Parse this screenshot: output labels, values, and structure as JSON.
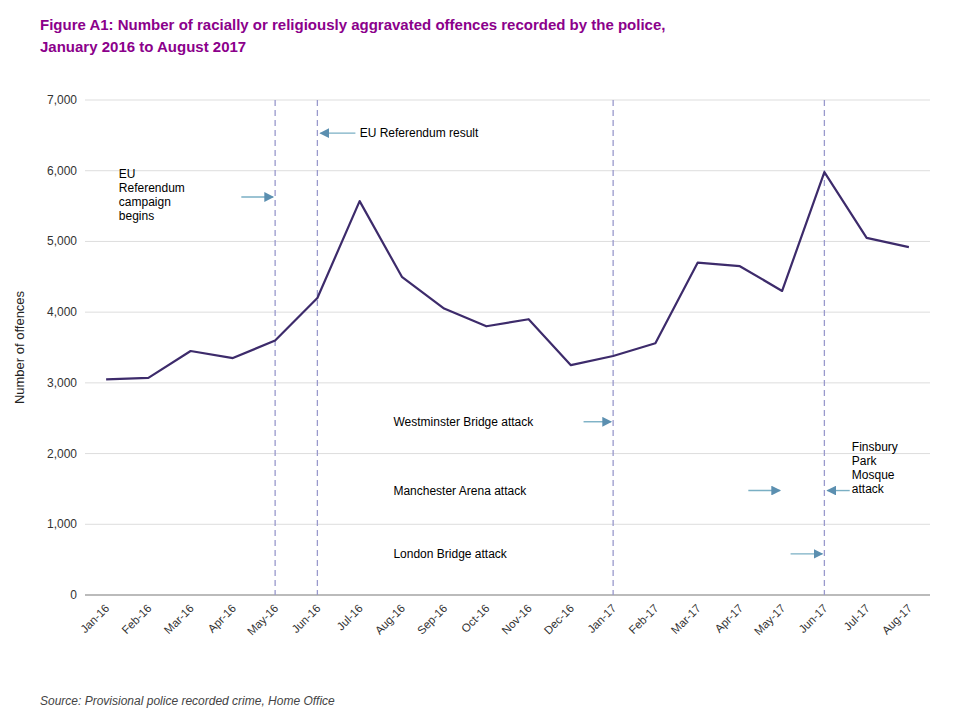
{
  "chart_data": {
    "type": "line",
    "title": "Figure A1: Number of racially or religiously aggravated offences recorded by the police,",
    "subtitle": "January 2016 to August 2017",
    "source": "Source: Provisional police recorded crime, Home Office",
    "y_label": "Number of offences",
    "categories": [
      "Jan-16",
      "Feb-16",
      "Mar-16",
      "Apr-16",
      "May-16",
      "Jun-16",
      "Jul-16",
      "Aug-16",
      "Sep-16",
      "Oct-16",
      "Nov-16",
      "Dec-16",
      "Jan-17",
      "Feb-17",
      "Mar-17",
      "Apr-17",
      "May-17",
      "Jun-17",
      "Jul-17",
      "Aug-17"
    ],
    "values": [
      3050,
      3070,
      3450,
      3350,
      3600,
      4200,
      5570,
      4500,
      4050,
      3800,
      3900,
      3250,
      3380,
      3560,
      4700,
      4650,
      4300,
      5980,
      5050,
      4920
    ],
    "color": "#3D2B6B",
    "ylim": [
      0,
      7000
    ],
    "yticks": [
      0,
      {
        "value": 1000,
        "label": "1,000"
      },
      {
        "value": 2000,
        "label": "2,000"
      },
      {
        "value": 3000,
        "label": "3,000"
      },
      {
        "value": 4000,
        "label": "4,000"
      },
      {
        "value": 5000,
        "label": "5,000"
      },
      {
        "value": 6000,
        "label": "6,000"
      },
      {
        "value": 7000,
        "label": "7,000"
      }
    ],
    "grid": true,
    "vlines": [
      "May-16",
      "Jun-16",
      "Jan-17",
      "Jun-17"
    ],
    "annotations": [
      {
        "text": "EU\nReferendum\ncampaign\nbegins",
        "x": "May-16"
      },
      {
        "text": "EU Referendum result",
        "x": "Jun-16"
      },
      {
        "text": "Westminster Bridge attack",
        "x": "Jan-17"
      },
      {
        "text": "Manchester Arena attack",
        "x": "May-17"
      },
      {
        "text": "London Bridge attack",
        "x": "Jun-17"
      },
      {
        "text": "Finsbury\nPark\nMosque\nattack",
        "x": "Jun-17"
      }
    ]
  }
}
